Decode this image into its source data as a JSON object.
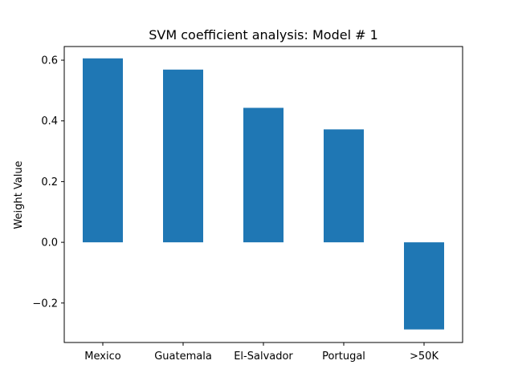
{
  "chart_data": {
    "type": "bar",
    "title": "SVM coefficient analysis: Model # 1",
    "xlabel": "",
    "ylabel": "Weight Value",
    "categories": [
      "Mexico",
      "Guatemala",
      "El-Salvador",
      "Portugal",
      ">50K"
    ],
    "values": [
      0.606,
      0.569,
      0.443,
      0.372,
      -0.287
    ],
    "ylim": [
      -0.33,
      0.645
    ],
    "yticks": [
      -0.2,
      0.0,
      0.2,
      0.4,
      0.6
    ],
    "ytick_labels": [
      "−0.2",
      "0.0",
      "0.2",
      "0.4",
      "0.6"
    ],
    "bar_color": "#1f77b4",
    "grid": false,
    "legend": false
  }
}
